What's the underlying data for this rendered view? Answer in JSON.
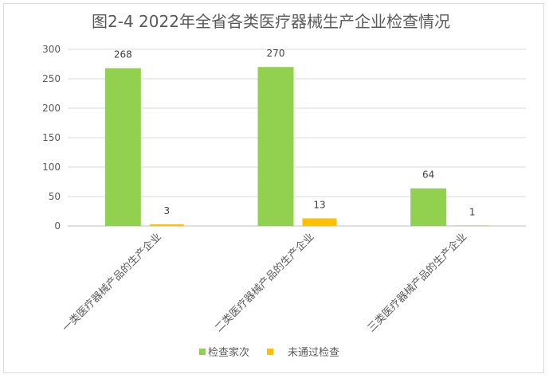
{
  "chart_data": {
    "type": "bar",
    "title": "图2-4   2022年全省各类医疗器械生产企业检查情况",
    "categories": [
      "一类医疗器械产品的生产企业",
      "二类医疗器械产品的生产企业",
      "三类医疗器械产品的生产企业"
    ],
    "series": [
      {
        "name": "检查家次",
        "values": [
          268,
          270,
          64
        ],
        "color": "#92d050"
      },
      {
        "name": "未通过检查",
        "values": [
          3,
          13,
          1
        ],
        "color": "#ffc000"
      }
    ],
    "ylim": [
      0,
      300
    ],
    "yticks": [
      0,
      50,
      100,
      150,
      200,
      250,
      300
    ],
    "grid": true,
    "legend": "bottom",
    "data_labels": true
  }
}
